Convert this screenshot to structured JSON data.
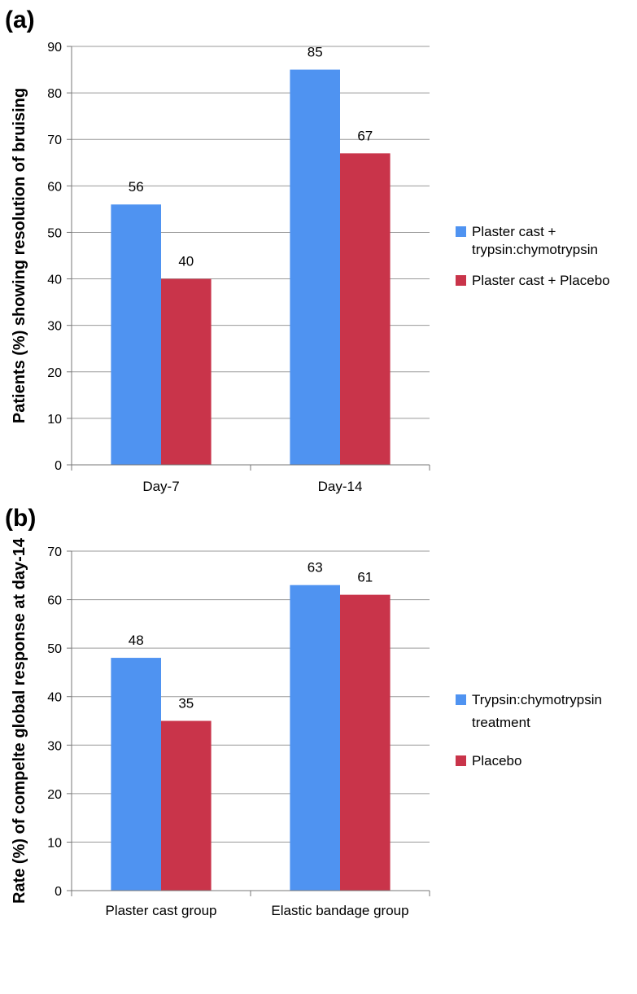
{
  "chart_data": [
    {
      "type": "bar",
      "panel_label": "(a)",
      "title": "",
      "xlabel": "",
      "ylabel": "Patients (%) showing resolution of bruising",
      "ylim": [
        0,
        90
      ],
      "yticks": [
        0,
        10,
        20,
        30,
        40,
        50,
        60,
        70,
        80,
        90
      ],
      "grid": true,
      "legend_position": "right",
      "categories": [
        "Day-7",
        "Day-14"
      ],
      "series": [
        {
          "name": "Plaster cast + trypsin:chymotrypsin",
          "legend_lines": [
            "Plaster cast +",
            "trypsin:chymotrypsin"
          ],
          "color": "#4f93f1",
          "values": [
            56,
            85
          ]
        },
        {
          "name": "Plaster cast + Placebo",
          "legend_lines": [
            "Plaster cast + Placebo"
          ],
          "color": "#c9344a",
          "values": [
            40,
            67
          ]
        }
      ]
    },
    {
      "type": "bar",
      "panel_label": "(b)",
      "title": "",
      "xlabel": "",
      "ylabel": "Rate (%) of compelte global response at  day-14",
      "ylim": [
        0,
        70
      ],
      "yticks": [
        0,
        10,
        20,
        30,
        40,
        50,
        60,
        70
      ],
      "grid": true,
      "legend_position": "right",
      "categories": [
        "Plaster cast group",
        "Elastic bandage group"
      ],
      "series": [
        {
          "name": "Trypsin:chymotrypsin treatment",
          "legend_lines": [
            "Trypsin:chymotrypsin",
            "treatment"
          ],
          "color": "#4f93f1",
          "values": [
            48,
            63
          ]
        },
        {
          "name": "Placebo",
          "legend_lines": [
            "Placebo"
          ],
          "color": "#c9344a",
          "values": [
            35,
            61
          ]
        }
      ]
    }
  ]
}
